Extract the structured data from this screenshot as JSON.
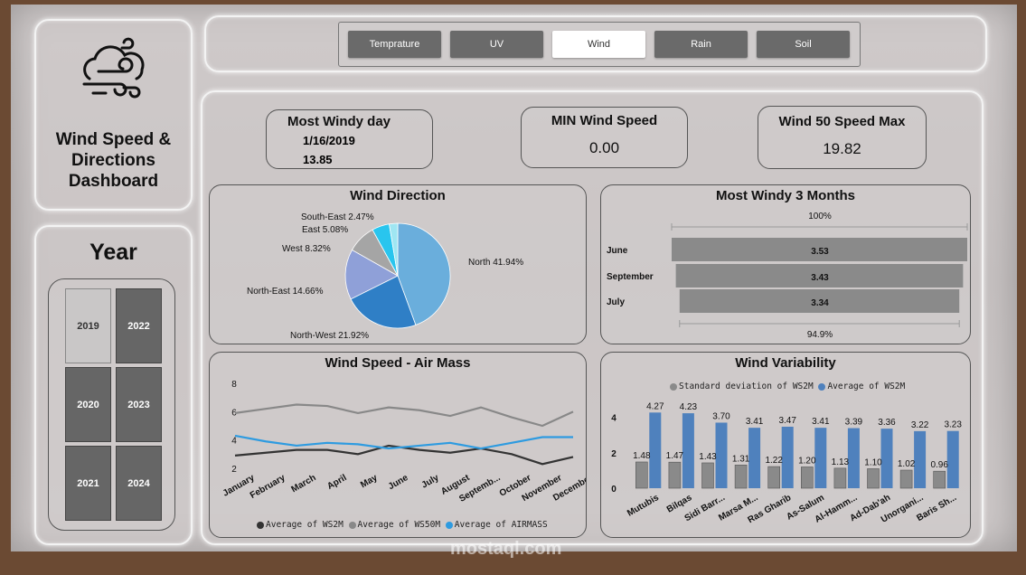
{
  "title": "Wind Speed & Directions Dashboard",
  "year_panel": {
    "title": "Year",
    "years": [
      "2019",
      "2022",
      "2020",
      "2023",
      "2021",
      "2024"
    ],
    "selected": "2019"
  },
  "tabs": [
    "Temprature",
    "UV",
    "Wind",
    "Rain",
    "Soil"
  ],
  "active_tab": "Wind",
  "kpis": {
    "most_windy_day": {
      "label": "Most Windy day",
      "date": "1/16/2019",
      "value": "13.85"
    },
    "min_wind_speed": {
      "label": "MIN Wind Speed",
      "value": "0.00"
    },
    "wind50_speed_max": {
      "label": "Wind 50 Speed Max",
      "value": "19.82"
    }
  },
  "watermark": "mostaql.com",
  "colors": {
    "bar_gray": "#8a8a8a",
    "bar_blue": "#4f81bd",
    "air_blue": "#2e9be0",
    "ws2m": "#333333",
    "ws50m": "#888888"
  },
  "chart_data": [
    {
      "type": "pie",
      "title": "Wind Direction",
      "categories": [
        "North",
        "North-West",
        "North-East",
        "West",
        "East",
        "South-East"
      ],
      "values": [
        41.94,
        21.92,
        14.66,
        8.32,
        5.08,
        2.47
      ],
      "labels": [
        "North 41.94%",
        "North-West 21.92%",
        "North-East 14.66%",
        "West 8.32%",
        "East 5.08%",
        "South-East 2.47%"
      ],
      "colors": [
        "#6aaedc",
        "#2f7fc6",
        "#8fa0d8",
        "#a5a5a5",
        "#29c5ee",
        "#9fe6f2"
      ]
    },
    {
      "type": "bar",
      "orientation": "horizontal",
      "title": "Most Windy 3 Months",
      "categories": [
        "June",
        "September",
        "July"
      ],
      "values": [
        3.53,
        3.43,
        3.34
      ],
      "value_labels": [
        "3.53",
        "3.43",
        "3.34"
      ],
      "top_label": "100%",
      "bottom_label": "94.9%"
    },
    {
      "type": "line",
      "title": "Wind Speed - Air Mass",
      "categories": [
        "January",
        "February",
        "March",
        "April",
        "May",
        "June",
        "July",
        "August",
        "Septemb...",
        "October",
        "November",
        "December"
      ],
      "ylim": [
        2,
        8
      ],
      "yticks": [
        "2",
        "4",
        "6",
        "8"
      ],
      "series": [
        {
          "name": "Average of WS2M",
          "values": [
            2.9,
            3.1,
            3.3,
            3.3,
            3.0,
            3.6,
            3.3,
            3.1,
            3.4,
            3.0,
            2.3,
            2.8
          ]
        },
        {
          "name": "Average of WS50M",
          "values": [
            5.9,
            6.2,
            6.5,
            6.4,
            5.9,
            6.3,
            6.1,
            5.7,
            6.3,
            5.6,
            5.0,
            6.0
          ]
        },
        {
          "name": "Average of AIRMASS",
          "values": [
            4.3,
            3.9,
            3.6,
            3.8,
            3.7,
            3.4,
            3.6,
            3.8,
            3.4,
            3.8,
            4.2,
            4.2
          ]
        }
      ]
    },
    {
      "type": "bar",
      "title": "Wind Variability",
      "categories": [
        "Mutubis",
        "Bilqas",
        "Sidi Barr...",
        "Marsa M...",
        "Ras Gharib",
        "As-Salum",
        "Al-Hamm...",
        "Ad-Dab'ah",
        "Unorgani...",
        "Baris Sh..."
      ],
      "yticks": [
        "0",
        "2",
        "4"
      ],
      "ylim": [
        0,
        5
      ],
      "series": [
        {
          "name": "Standard deviation of WS2M",
          "values": [
            1.48,
            1.47,
            1.43,
            1.31,
            1.22,
            1.2,
            1.13,
            1.1,
            1.02,
            0.96
          ],
          "labels": [
            "1.48",
            "1.47",
            "1.43",
            "1.31",
            "1.22",
            "1.20",
            "1.13",
            "1.10",
            "1.02",
            "0.96"
          ]
        },
        {
          "name": "Average of WS2M",
          "values": [
            4.27,
            4.23,
            3.7,
            3.41,
            3.47,
            3.41,
            3.39,
            3.36,
            3.22,
            3.23
          ],
          "labels": [
            "4.27",
            "4.23",
            "3.70",
            "3.41",
            "3.47",
            "3.41",
            "3.39",
            "3.36",
            "3.22",
            "3.23"
          ]
        }
      ]
    }
  ]
}
